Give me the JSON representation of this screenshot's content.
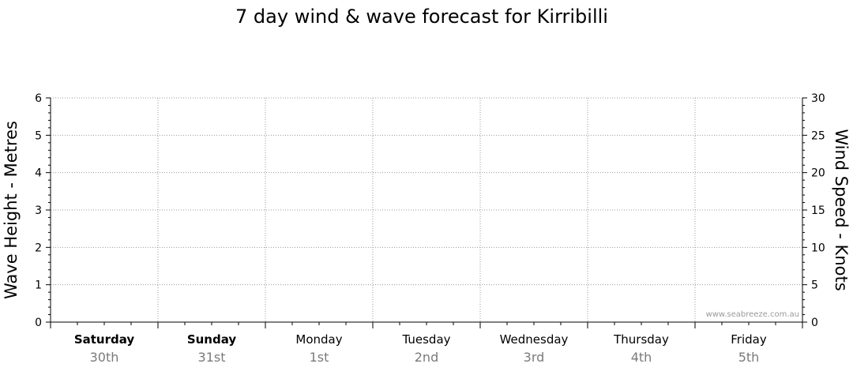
{
  "chart_data": {
    "type": "line",
    "title": "7 day wind & wave forecast for Kirribilli",
    "left_axis": {
      "label": "Wave Height - Metres",
      "min": 0,
      "max": 6,
      "ticks": [
        0,
        1,
        2,
        3,
        4,
        5,
        6
      ]
    },
    "right_axis": {
      "label": "Wind Speed - Knots",
      "min": 0,
      "max": 30,
      "ticks": [
        0,
        5,
        10,
        15,
        20,
        25,
        30
      ]
    },
    "days": [
      {
        "day": "Saturday",
        "date": "30th",
        "bold": true
      },
      {
        "day": "Sunday",
        "date": "31st",
        "bold": true
      },
      {
        "day": "Monday",
        "date": "1st",
        "bold": false
      },
      {
        "day": "Tuesday",
        "date": "2nd",
        "bold": false
      },
      {
        "day": "Wednesday",
        "date": "3rd",
        "bold": false
      },
      {
        "day": "Thursday",
        "date": "4th",
        "bold": false
      },
      {
        "day": "Friday",
        "date": "5th",
        "bold": false
      }
    ],
    "series": [],
    "grid": true,
    "watermark": "www.seabreeze.com.au"
  }
}
